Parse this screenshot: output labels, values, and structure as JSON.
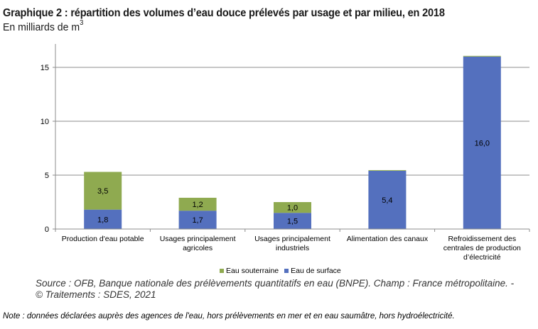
{
  "header": {
    "title": "Graphique 2 : répartition des volumes d’eau douce prélevés par usage et par milieu, en 2018",
    "subtitle_prefix": "En milliards de m",
    "subtitle_sup": "3"
  },
  "legend": [
    {
      "name": "Eau souterraine",
      "color": "#8FAA50"
    },
    {
      "name": "Eau de surface",
      "color": "#5470BE"
    }
  ],
  "source": {
    "line1": "Source : OFB, Banque nationale des prélèvements quantitatifs en eau (BNPE). Champ : France métropolitaine. -",
    "line2": "© Traitements : SDES, 2021"
  },
  "note": "Note : données déclarées auprès des agences de l'eau, hors prélèvements en mer et en eau saumâtre, hors hydroélectricité.",
  "chart_data": {
    "type": "bar",
    "stacked": true,
    "title": "Graphique 2 : répartition des volumes d’eau douce prélevés par usage et par milieu, en 2018",
    "subtitle": "En milliards de m3",
    "xlabel": "",
    "ylabel": "",
    "ylim": [
      0,
      17
    ],
    "yticks": [
      0,
      5,
      10,
      15
    ],
    "grid": true,
    "legend_position": "bottom",
    "categories": [
      [
        "Production d'eau potable"
      ],
      [
        "Usages principalement",
        "agricoles"
      ],
      [
        "Usages principalement",
        "industriels"
      ],
      [
        "Alimentation des canaux"
      ],
      [
        "Refroidissement des",
        "centrales de production",
        "d’électricité"
      ]
    ],
    "series": [
      {
        "name": "Eau de surface",
        "color": "#5470BE",
        "values": [
          1.8,
          1.7,
          1.5,
          5.4,
          16.0
        ],
        "labels": [
          "1,8",
          "1,7",
          "1,5",
          "5,4",
          "16,0"
        ]
      },
      {
        "name": "Eau souterraine",
        "color": "#8FAA50",
        "values": [
          3.5,
          1.2,
          1.0,
          0.05,
          0.05
        ],
        "labels": [
          "3,5",
          "1,2",
          "1,0",
          "",
          ""
        ]
      }
    ]
  }
}
